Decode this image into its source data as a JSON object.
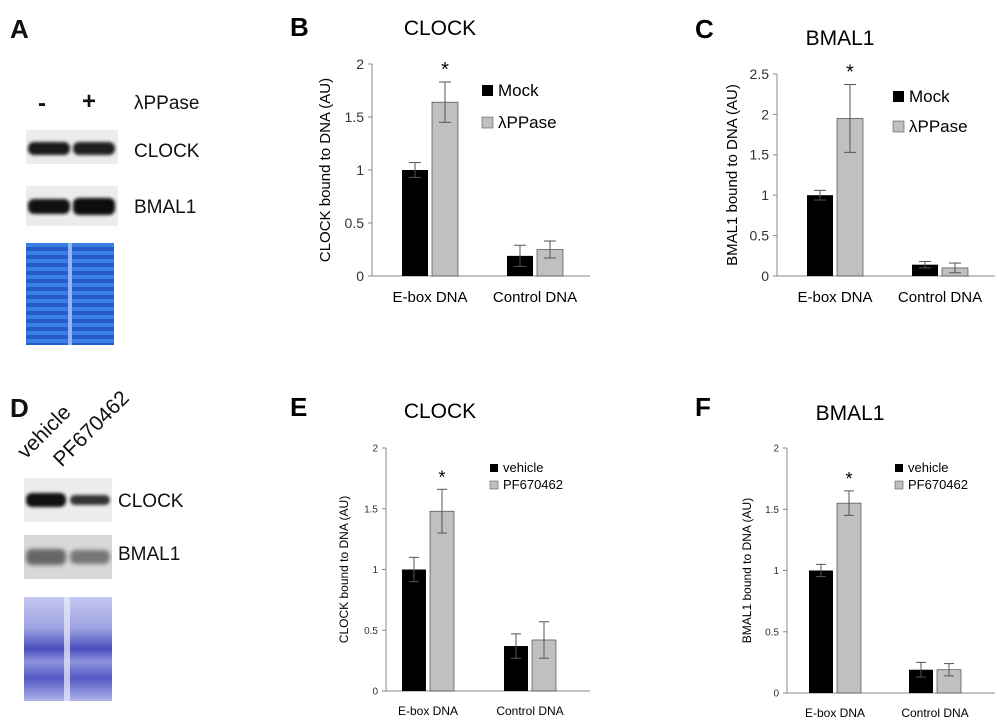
{
  "colors": {
    "mock": "#000000",
    "treat": "#c0c0c0",
    "axis": "#888888",
    "gel_blue_A": "#3a7be0",
    "gel_blue_D": "#6e74d4"
  },
  "panel_a": {
    "letter": "A",
    "lane_labels": [
      "-",
      "+"
    ],
    "treatment_label": "λPPase",
    "blot_labels": [
      "CLOCK",
      "BMAL1"
    ]
  },
  "panel_d": {
    "letter": "D",
    "lane_labels": [
      "vehicle",
      "PF670462"
    ],
    "blot_labels": [
      "CLOCK",
      "BMAL1"
    ]
  },
  "chart_data": [
    {
      "panel": "B",
      "type": "bar",
      "title": "CLOCK",
      "ylabel": "CLOCK bound to DNA (AU)",
      "categories": [
        "E-box DNA",
        "Control DNA"
      ],
      "ylim": [
        0,
        2
      ],
      "yticks": [
        "0",
        "0.5",
        "1",
        "1.5",
        "2"
      ],
      "series": [
        {
          "name": "Mock",
          "values": [
            1.0,
            0.19
          ],
          "errors": [
            0.07,
            0.1
          ]
        },
        {
          "name": "λPPase",
          "values": [
            1.64,
            0.25
          ],
          "errors": [
            0.19,
            0.08
          ]
        }
      ],
      "annotations": [
        "*"
      ],
      "legend": "top-right"
    },
    {
      "panel": "C",
      "type": "bar",
      "title": "BMAL1",
      "ylabel": "BMAL1 bound to DNA (AU)",
      "categories": [
        "E-box DNA",
        "Control DNA"
      ],
      "ylim": [
        0,
        2.5
      ],
      "yticks": [
        "0",
        "0.5",
        "1",
        "1.5",
        "2",
        "2.5"
      ],
      "series": [
        {
          "name": "Mock",
          "values": [
            1.0,
            0.14
          ],
          "errors": [
            0.06,
            0.04
          ]
        },
        {
          "name": "λPPase",
          "values": [
            1.95,
            0.1
          ],
          "errors": [
            0.42,
            0.06
          ]
        }
      ],
      "annotations": [
        "*"
      ],
      "legend": "top-right"
    },
    {
      "panel": "E",
      "type": "bar",
      "title": "CLOCK",
      "ylabel": "CLOCK bound to DNA (AU)",
      "categories": [
        "E-box DNA",
        "Control DNA"
      ],
      "ylim": [
        0,
        2
      ],
      "yticks": [
        "0",
        "0.5",
        "1",
        "1.5",
        "2"
      ],
      "series": [
        {
          "name": "vehicle",
          "values": [
            1.0,
            0.37
          ],
          "errors": [
            0.1,
            0.1
          ]
        },
        {
          "name": "PF670462",
          "values": [
            1.48,
            0.42
          ],
          "errors": [
            0.18,
            0.15
          ]
        }
      ],
      "annotations": [
        "*"
      ],
      "legend": "top-right"
    },
    {
      "panel": "F",
      "type": "bar",
      "title": "BMAL1",
      "ylabel": "BMAL1 bound to DNA (AU)",
      "categories": [
        "E-box DNA",
        "Control DNA"
      ],
      "ylim": [
        0,
        2
      ],
      "yticks": [
        "0",
        "0.5",
        "1",
        "1.5",
        "2"
      ],
      "series": [
        {
          "name": "vehicle",
          "values": [
            1.0,
            0.19
          ],
          "errors": [
            0.05,
            0.06
          ]
        },
        {
          "name": "PF670462",
          "values": [
            1.55,
            0.19
          ],
          "errors": [
            0.1,
            0.05
          ]
        }
      ],
      "annotations": [
        "*"
      ],
      "legend": "top-right"
    }
  ]
}
